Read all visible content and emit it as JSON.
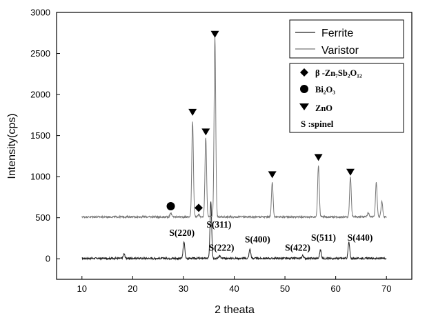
{
  "chart_data": {
    "type": "line",
    "xlabel": "2 theata",
    "ylabel": "Intensity(cps)",
    "xlim": [
      5,
      75
    ],
    "ylim": [
      -250,
      3000
    ],
    "xticks": [
      10,
      20,
      30,
      40,
      50,
      60,
      70
    ],
    "yticks": [
      0,
      500,
      1000,
      1500,
      2000,
      2500,
      3000
    ],
    "grid": false,
    "legend": {
      "placement": "top-right",
      "entries": [
        {
          "name": "Ferrite",
          "color": "#222222"
        },
        {
          "name": "Varistor",
          "color": "#777777"
        }
      ]
    },
    "series": [
      {
        "name": "Ferrite",
        "color": "#222222",
        "baseline": 5,
        "x_range": [
          10,
          70
        ],
        "peaks": [
          [
            18.3,
            60
          ],
          [
            30.1,
            210
          ],
          [
            35.4,
            700
          ],
          [
            37.1,
            40
          ],
          [
            43.1,
            120
          ],
          [
            53.5,
            40
          ],
          [
            57.0,
            110
          ],
          [
            62.6,
            200
          ]
        ]
      },
      {
        "name": "Varistor",
        "color": "#777777",
        "baseline": 510,
        "x_range": [
          10,
          70
        ],
        "peaks": [
          [
            27.5,
            560
          ],
          [
            31.8,
            1680
          ],
          [
            33.0,
            540
          ],
          [
            34.4,
            1480
          ],
          [
            36.2,
            2700
          ],
          [
            47.5,
            930
          ],
          [
            56.6,
            1140
          ],
          [
            62.9,
            1000
          ],
          [
            66.4,
            560
          ],
          [
            68.0,
            930
          ],
          [
            69.1,
            700
          ]
        ]
      }
    ],
    "marker_legend": [
      {
        "symbol": "diamond",
        "label": "β -Zn₇Sb₂O₁₂"
      },
      {
        "symbol": "circle",
        "label": "Bi₂O₃"
      },
      {
        "symbol": "triangle",
        "label": "ZnO"
      },
      {
        "symbol": "S",
        "label": "S :spinel"
      }
    ],
    "markers": [
      {
        "symbol": "circle",
        "x": 27.5,
        "y": 640
      },
      {
        "symbol": "diamond",
        "x": 33.0,
        "y": 620
      },
      {
        "symbol": "triangle",
        "x": 31.8,
        "y": 1750
      },
      {
        "symbol": "triangle",
        "x": 34.4,
        "y": 1510
      },
      {
        "symbol": "triangle",
        "x": 36.2,
        "y": 2700
      },
      {
        "symbol": "triangle",
        "x": 47.5,
        "y": 990
      },
      {
        "symbol": "triangle",
        "x": 56.6,
        "y": 1200
      },
      {
        "symbol": "triangle",
        "x": 62.9,
        "y": 1020
      }
    ],
    "annotations": [
      {
        "text": "S(220)",
        "x": 29.7,
        "y": 280
      },
      {
        "text": "S(311)",
        "x": 37.0,
        "y": 380
      },
      {
        "text": "S(222)",
        "x": 37.5,
        "y": 100
      },
      {
        "text": "S(400)",
        "x": 44.6,
        "y": 200
      },
      {
        "text": "S(422)",
        "x": 52.5,
        "y": 100
      },
      {
        "text": "S(511)",
        "x": 57.6,
        "y": 220
      },
      {
        "text": "S(440)",
        "x": 64.8,
        "y": 220
      }
    ]
  }
}
